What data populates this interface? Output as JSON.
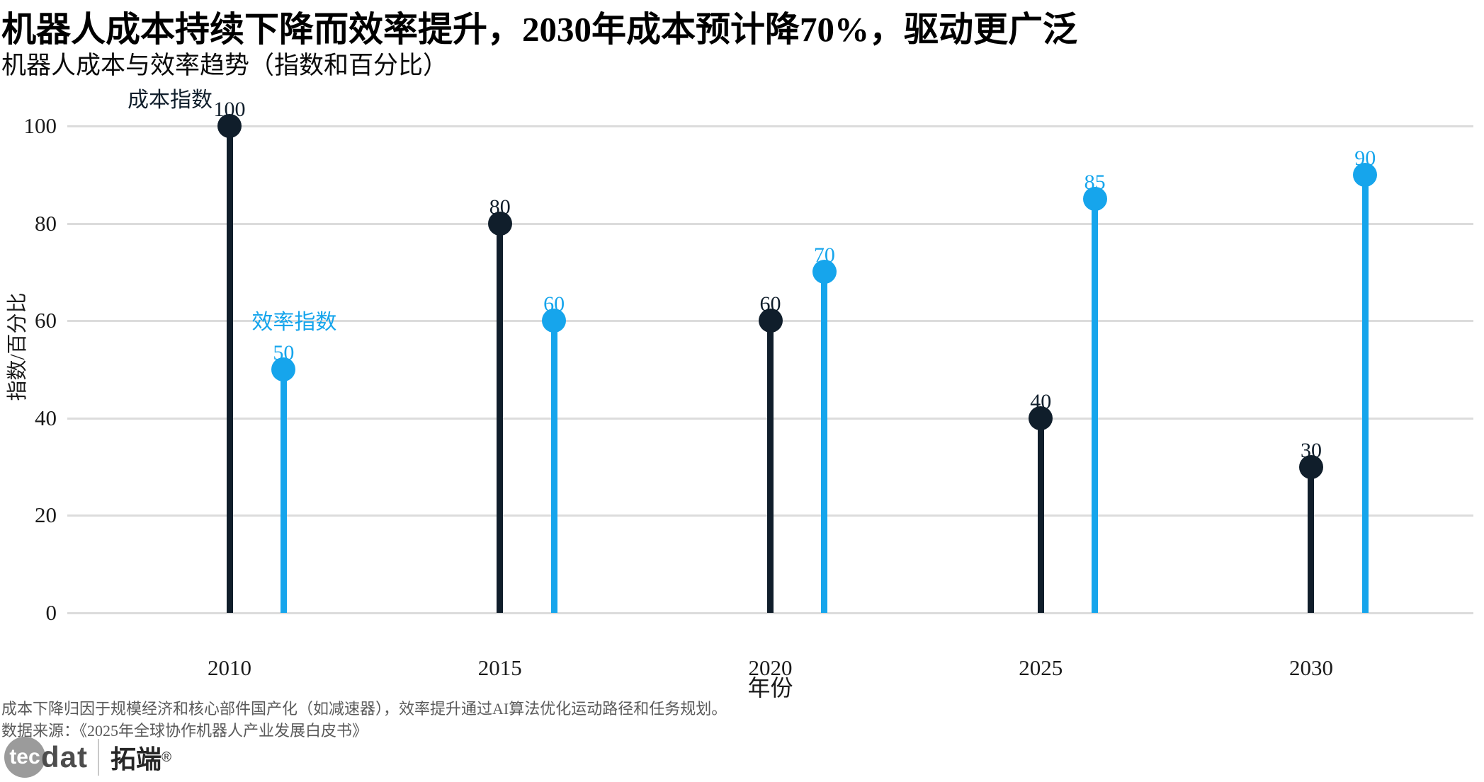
{
  "header": {
    "title": "机器人成本持续下降而效率提升，2030年成本预计降70%，驱动更广泛",
    "subtitle": "机器人成本与效率趋势（指数和百分比）"
  },
  "chart_data": {
    "type": "lollipop",
    "title": "机器人成本与效率趋势（指数和百分比）",
    "xlabel": "年份",
    "ylabel": "指数/百分比",
    "xticks": [
      2010,
      2015,
      2020,
      2025,
      2030
    ],
    "yticks": [
      0,
      20,
      40,
      60,
      80,
      100
    ],
    "xlim": [
      2007,
      2033
    ],
    "ylim": [
      0,
      100
    ],
    "grid": true,
    "legend_position": "annotations near first point of each series",
    "series": [
      {
        "name": "成本指数",
        "color": "#101e2b",
        "x": [
          2010,
          2015,
          2020,
          2025,
          2030
        ],
        "values": [
          100,
          80,
          60,
          40,
          30
        ]
      },
      {
        "name": "效率指数",
        "color": "#16a5ec",
        "x": [
          2011,
          2016,
          2021,
          2026,
          2031
        ],
        "values": [
          50,
          60,
          70,
          85,
          90
        ]
      }
    ],
    "annotations": [
      {
        "text": "成本指数",
        "color": "#101e2b",
        "series": 0,
        "point": 0
      },
      {
        "text": "效率指数",
        "color": "#16a5ec",
        "series": 1,
        "point": 0
      }
    ]
  },
  "footer": {
    "note": "成本下降归因于规模经济和核心部件国产化（如减速器），效率提升通过AI算法优化运动路径和任务规划。",
    "source": "数据来源：《2025年全球协作机器人产业发展白皮书》"
  },
  "logo": {
    "circle_text": "tec",
    "suffix": "dat",
    "brand": "拓端",
    "registered": "®"
  },
  "colors": {
    "grid": "#dcdcdc",
    "tick_text": "#1a1a1a",
    "note_text": "#5a5a5a",
    "logo_gray": "#9b9b9b"
  }
}
